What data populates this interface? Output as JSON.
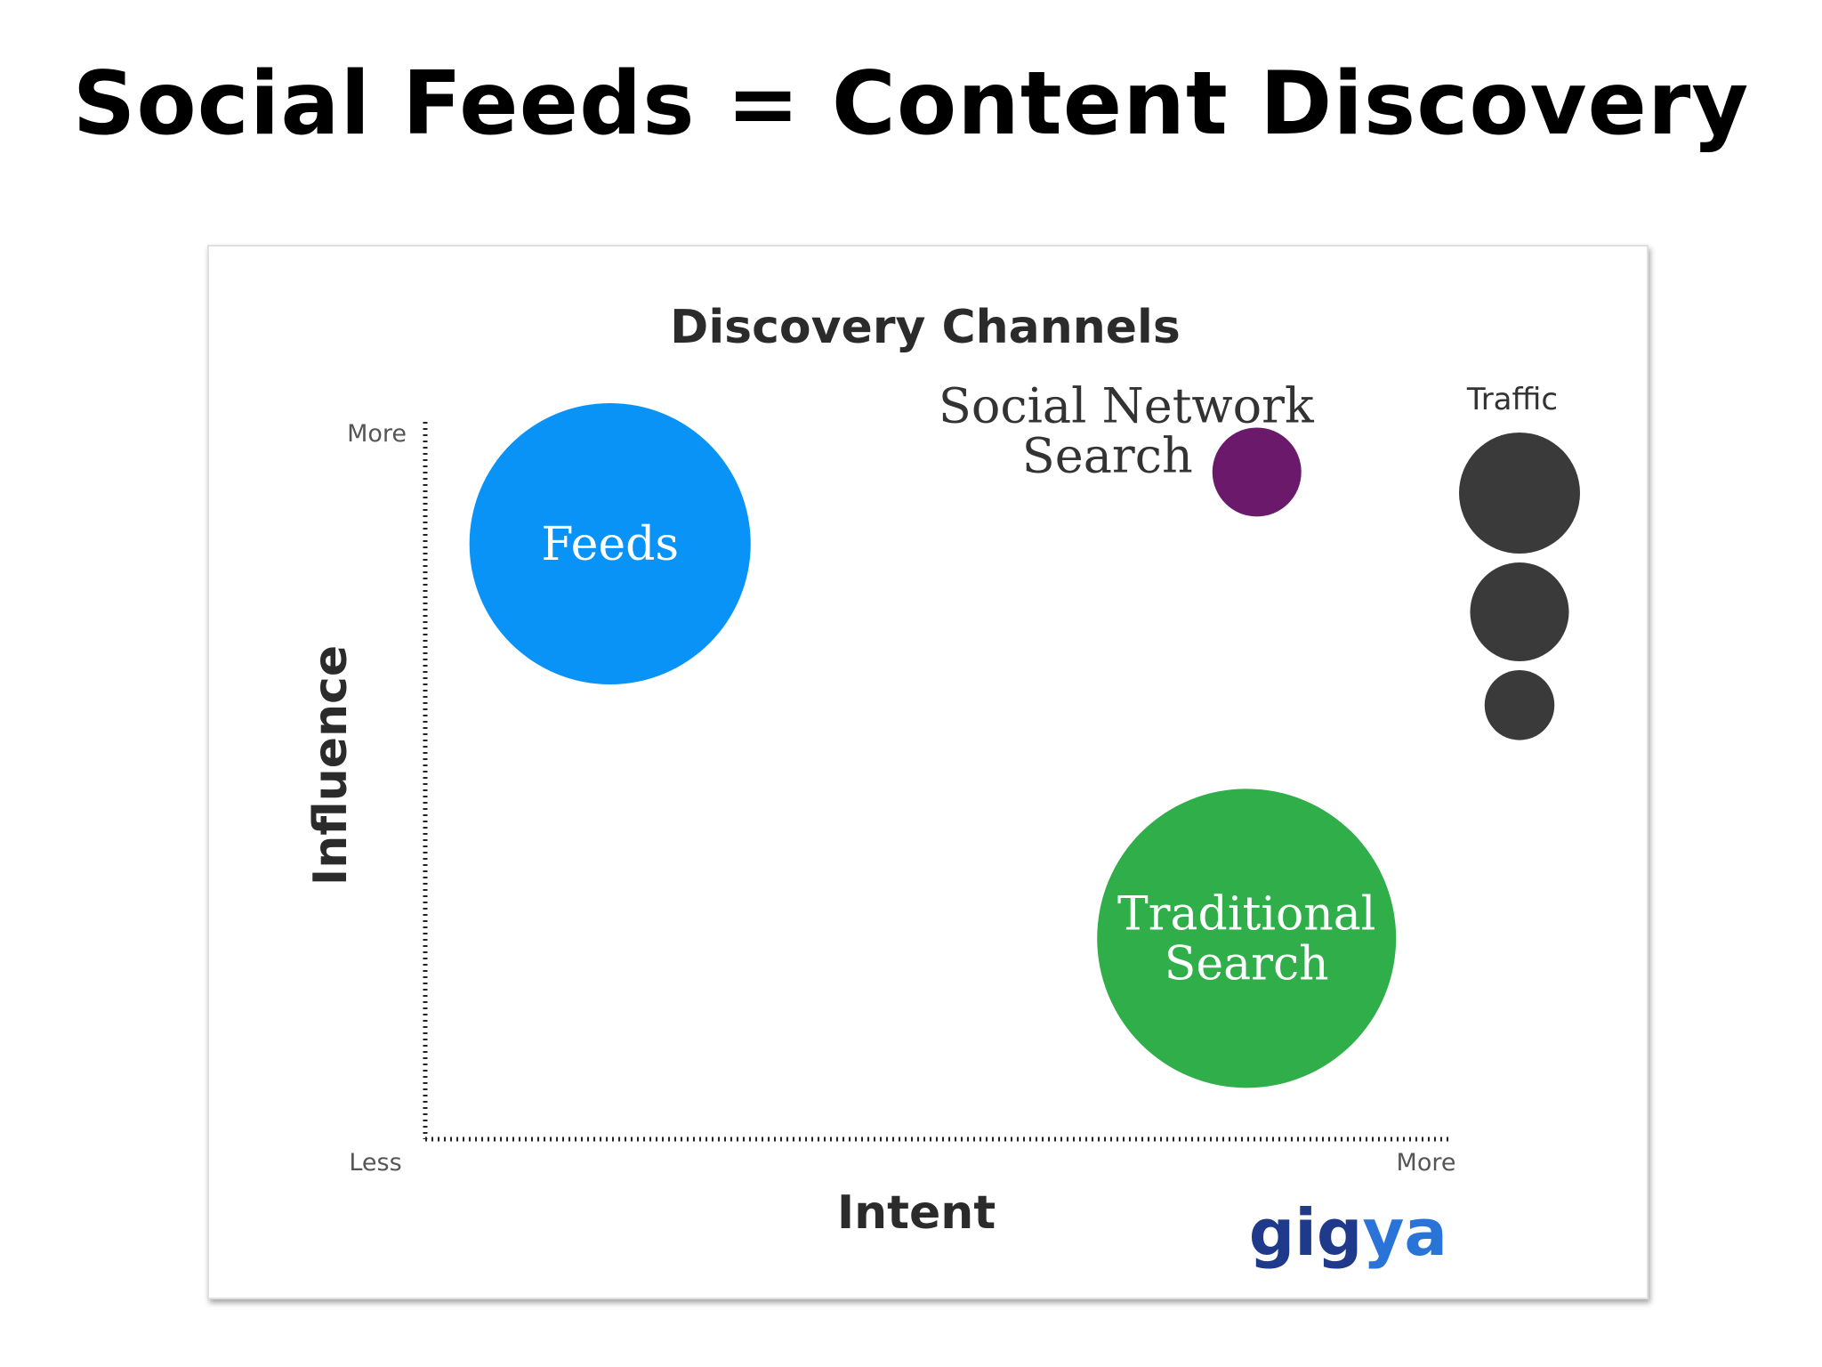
{
  "slide": {
    "title": "Social Feeds = Content Discovery"
  },
  "brand": {
    "logo_gig": "gig",
    "logo_ya": "ya",
    "colors": {
      "dark": "#1f3a8a",
      "light": "#2a74d8"
    }
  },
  "chart_data": {
    "type": "scatter",
    "title": "Discovery Channels",
    "xlabel": "Intent",
    "ylabel": "Influence",
    "x_ticks": {
      "low": "Less",
      "high": "More"
    },
    "y_ticks": {
      "low": "Less",
      "high": "More"
    },
    "xlim": [
      0,
      1
    ],
    "ylim": [
      0,
      1
    ],
    "grid": false,
    "points": [
      {
        "label": [
          "Feeds"
        ],
        "x": 0.18,
        "y": 0.83,
        "size": 1.0,
        "color": "#0a93f6",
        "label_color": "#ffffff",
        "label_inside": true
      },
      {
        "label": [
          "Social Network",
          "Search"
        ],
        "x": 0.81,
        "y": 0.93,
        "size": 0.1,
        "color": "#6b1a6b",
        "label_color": "#333333",
        "label_inside": false
      },
      {
        "label": [
          "Traditional",
          "Search"
        ],
        "x": 0.8,
        "y": 0.28,
        "size": 1.13,
        "color": "#2fae4a",
        "label_color": "#ffffff",
        "label_inside": true
      }
    ],
    "legend": {
      "title": "Traffic",
      "position": "top-right",
      "color": "#3a3a3a",
      "sizes": [
        3,
        2,
        1
      ]
    }
  }
}
